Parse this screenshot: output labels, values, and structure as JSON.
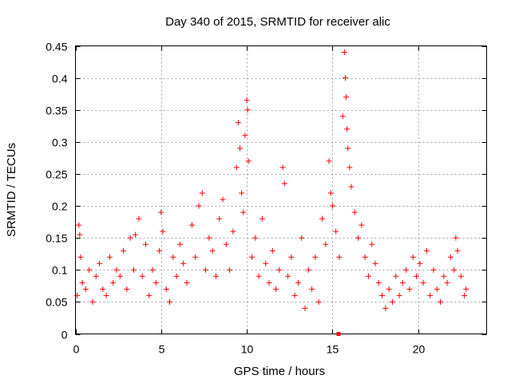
{
  "chart_data": {
    "type": "scatter",
    "title": "Day 340 of 2015, SRMTID for receiver alic",
    "xlabel": "GPS time / hours",
    "ylabel": "SRMTID / TECUs",
    "xlim": [
      0,
      24
    ],
    "ylim": [
      0,
      0.45
    ],
    "xticks": [
      0,
      5,
      10,
      15,
      20
    ],
    "xtick_labels": [
      "0",
      "5",
      "10",
      "15",
      "20"
    ],
    "yticks": [
      0,
      0.05,
      0.1,
      0.15,
      0.2,
      0.25,
      0.3,
      0.35,
      0.4,
      0.45
    ],
    "ytick_labels": [
      "0",
      "0.05",
      "0.1",
      "0.15",
      "0.2",
      "0.25",
      "0.3",
      "0.35",
      "0.4",
      "0.45"
    ],
    "grid": true,
    "marker": "+",
    "colors": {
      "series": "#ff0000",
      "axes": "#000000",
      "grid": "#a0a0a0"
    },
    "series": [
      {
        "name": "SRMTID",
        "marker": "+",
        "points": [
          [
            0.1,
            0.06
          ],
          [
            0.2,
            0.17
          ],
          [
            0.25,
            0.155
          ],
          [
            0.3,
            0.12
          ],
          [
            0.4,
            0.08
          ],
          [
            0.6,
            0.07
          ],
          [
            0.8,
            0.1
          ],
          [
            1.0,
            0.05
          ],
          [
            1.2,
            0.09
          ],
          [
            1.4,
            0.11
          ],
          [
            1.6,
            0.07
          ],
          [
            1.8,
            0.06
          ],
          [
            2.0,
            0.12
          ],
          [
            2.2,
            0.08
          ],
          [
            2.4,
            0.1
          ],
          [
            2.6,
            0.09
          ],
          [
            2.8,
            0.13
          ],
          [
            3.0,
            0.07
          ],
          [
            3.2,
            0.15
          ],
          [
            3.4,
            0.1
          ],
          [
            3.5,
            0.155
          ],
          [
            3.7,
            0.18
          ],
          [
            3.9,
            0.09
          ],
          [
            4.1,
            0.14
          ],
          [
            4.3,
            0.06
          ],
          [
            4.5,
            0.1
          ],
          [
            4.7,
            0.08
          ],
          [
            4.9,
            0.13
          ],
          [
            5.0,
            0.19
          ],
          [
            5.1,
            0.16
          ],
          [
            5.3,
            0.07
          ],
          [
            5.5,
            0.05
          ],
          [
            5.7,
            0.12
          ],
          [
            5.9,
            0.09
          ],
          [
            6.1,
            0.14
          ],
          [
            6.3,
            0.11
          ],
          [
            6.5,
            0.08
          ],
          [
            6.8,
            0.17
          ],
          [
            7.0,
            0.12
          ],
          [
            7.2,
            0.2
          ],
          [
            7.4,
            0.22
          ],
          [
            7.6,
            0.1
          ],
          [
            7.8,
            0.15
          ],
          [
            8.0,
            0.13
          ],
          [
            8.2,
            0.09
          ],
          [
            8.4,
            0.18
          ],
          [
            8.6,
            0.21
          ],
          [
            8.8,
            0.14
          ],
          [
            9.0,
            0.1
          ],
          [
            9.2,
            0.16
          ],
          [
            9.4,
            0.26
          ],
          [
            9.5,
            0.33
          ],
          [
            9.6,
            0.29
          ],
          [
            9.7,
            0.22
          ],
          [
            9.8,
            0.19
          ],
          [
            9.9,
            0.31
          ],
          [
            10.0,
            0.365
          ],
          [
            10.05,
            0.35
          ],
          [
            10.1,
            0.27
          ],
          [
            10.3,
            0.12
          ],
          [
            10.5,
            0.15
          ],
          [
            10.7,
            0.09
          ],
          [
            10.9,
            0.18
          ],
          [
            11.1,
            0.11
          ],
          [
            11.3,
            0.08
          ],
          [
            11.5,
            0.13
          ],
          [
            11.7,
            0.07
          ],
          [
            11.9,
            0.1
          ],
          [
            12.1,
            0.26
          ],
          [
            12.2,
            0.235
          ],
          [
            12.4,
            0.09
          ],
          [
            12.6,
            0.12
          ],
          [
            12.8,
            0.06
          ],
          [
            13.0,
            0.08
          ],
          [
            13.2,
            0.15
          ],
          [
            13.4,
            0.04
          ],
          [
            13.6,
            0.1
          ],
          [
            13.8,
            0.07
          ],
          [
            14.0,
            0.12
          ],
          [
            14.2,
            0.05
          ],
          [
            14.4,
            0.18
          ],
          [
            14.6,
            0.14
          ],
          [
            14.8,
            0.27
          ],
          [
            14.9,
            0.22
          ],
          [
            15.0,
            0.2
          ],
          [
            15.2,
            0.16
          ],
          [
            15.4,
            0.12
          ],
          [
            15.6,
            0.34
          ],
          [
            15.7,
            0.44
          ],
          [
            15.75,
            0.4
          ],
          [
            15.8,
            0.37
          ],
          [
            15.85,
            0.32
          ],
          [
            15.9,
            0.29
          ],
          [
            16.0,
            0.26
          ],
          [
            16.1,
            0.23
          ],
          [
            16.3,
            0.19
          ],
          [
            16.5,
            0.15
          ],
          [
            16.7,
            0.17
          ],
          [
            16.9,
            0.12
          ],
          [
            17.1,
            0.09
          ],
          [
            17.3,
            0.14
          ],
          [
            17.5,
            0.11
          ],
          [
            17.7,
            0.08
          ],
          [
            17.9,
            0.06
          ],
          [
            18.1,
            0.04
          ],
          [
            18.3,
            0.07
          ],
          [
            18.5,
            0.05
          ],
          [
            18.7,
            0.09
          ],
          [
            18.9,
            0.06
          ],
          [
            19.1,
            0.08
          ],
          [
            19.3,
            0.1
          ],
          [
            19.5,
            0.07
          ],
          [
            19.7,
            0.12
          ],
          [
            19.9,
            0.09
          ],
          [
            20.1,
            0.11
          ],
          [
            20.3,
            0.08
          ],
          [
            20.5,
            0.13
          ],
          [
            20.7,
            0.06
          ],
          [
            20.9,
            0.1
          ],
          [
            21.1,
            0.07
          ],
          [
            21.3,
            0.05
          ],
          [
            21.5,
            0.09
          ],
          [
            21.7,
            0.08
          ],
          [
            21.9,
            0.12
          ],
          [
            22.1,
            0.1
          ],
          [
            22.2,
            0.15
          ],
          [
            22.3,
            0.13
          ],
          [
            22.5,
            0.09
          ],
          [
            22.7,
            0.06
          ],
          [
            22.8,
            0.07
          ]
        ]
      }
    ]
  }
}
